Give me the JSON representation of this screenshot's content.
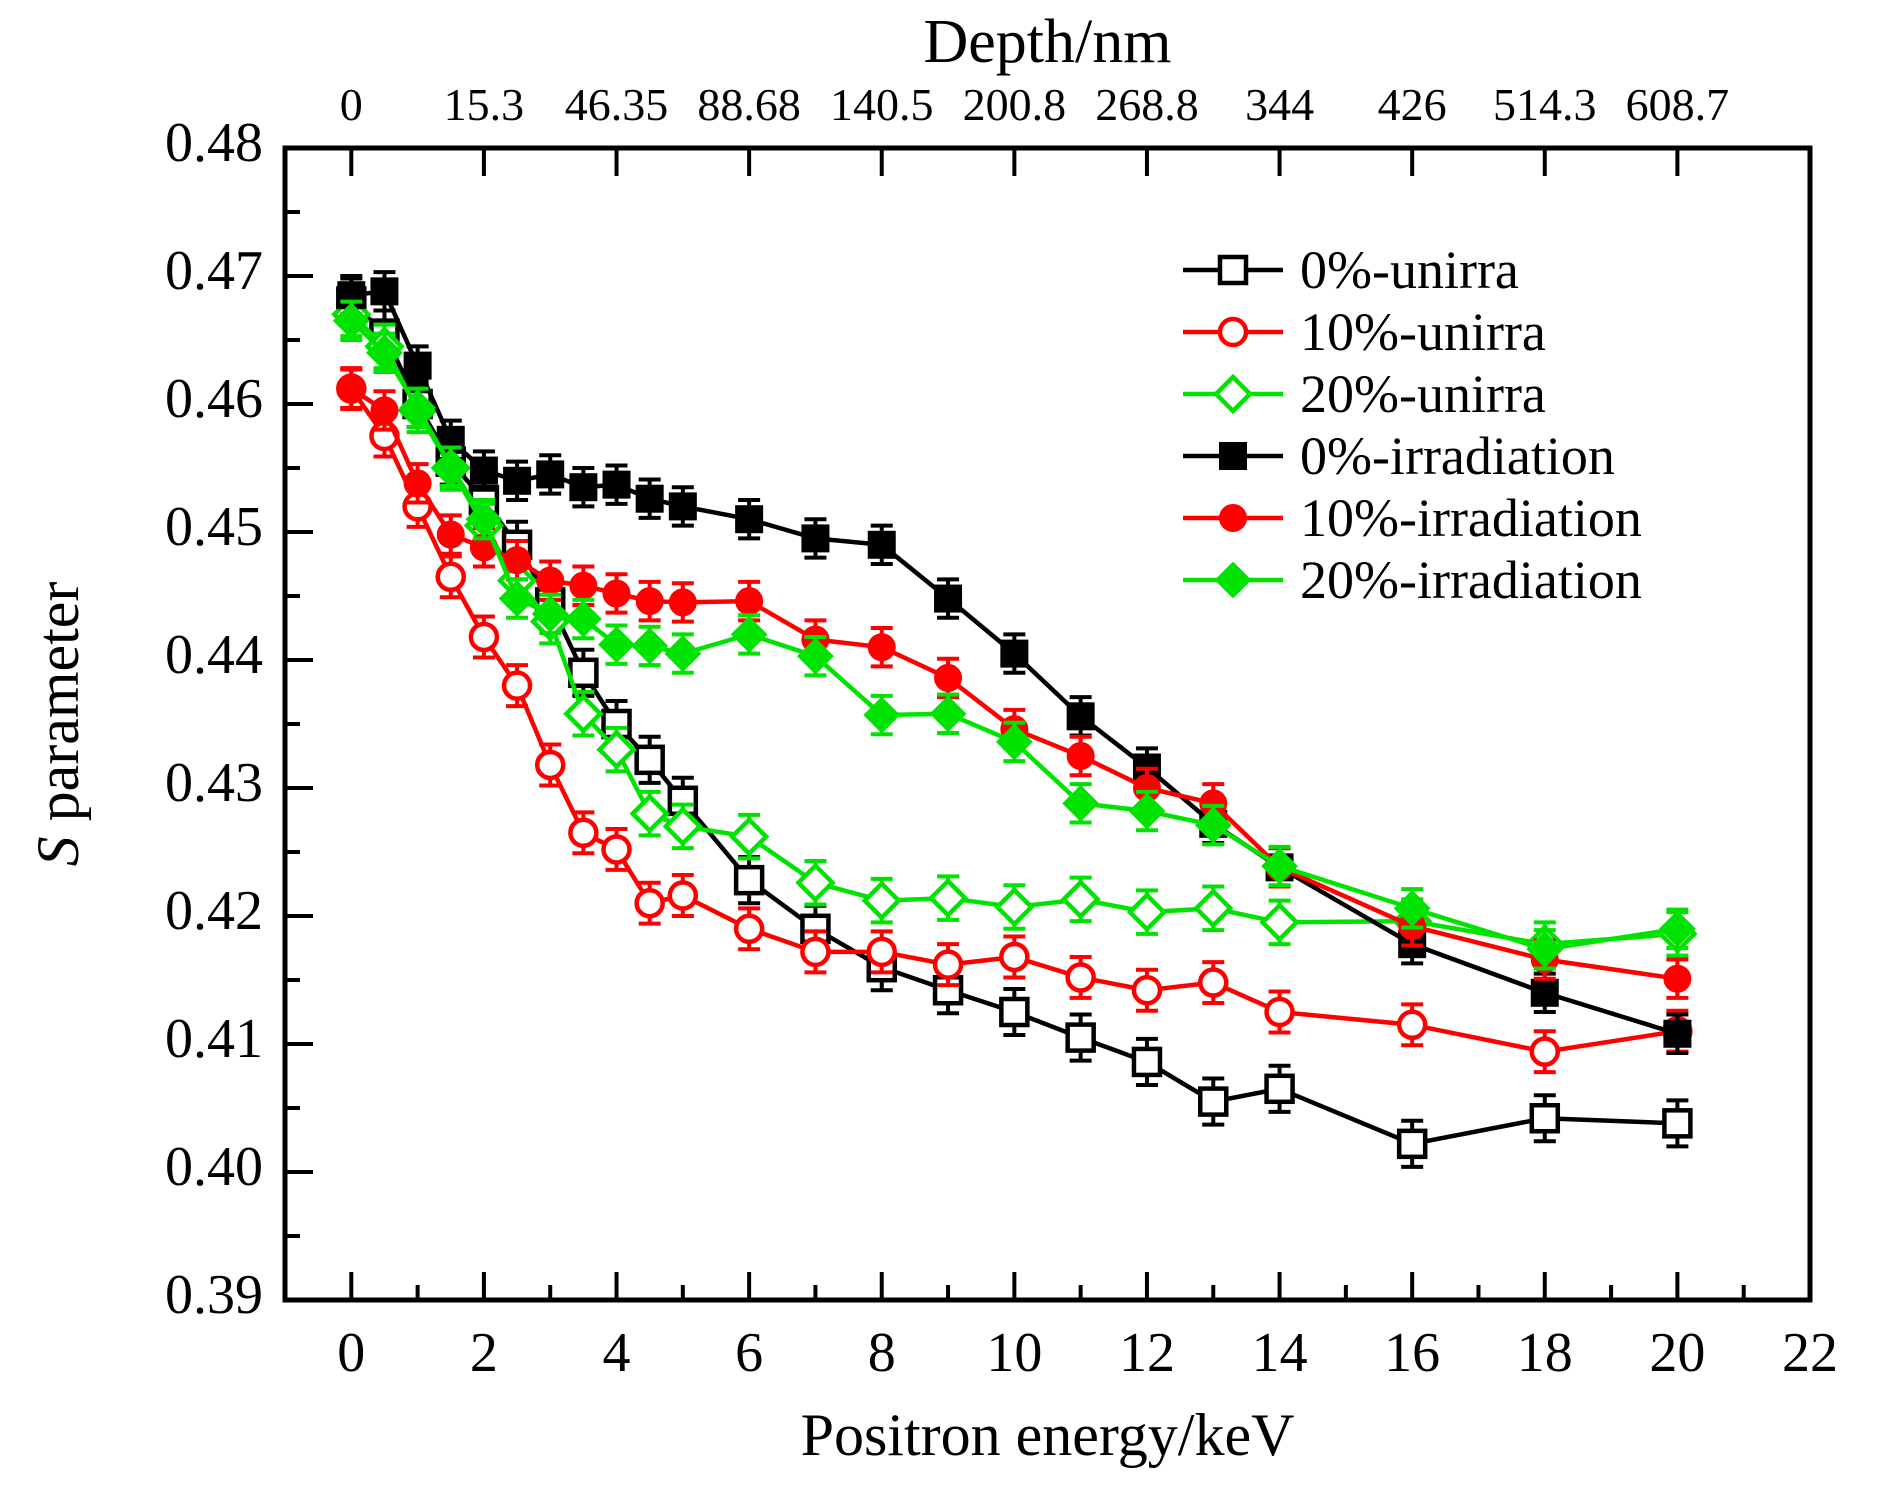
{
  "chart_data": {
    "type": "line",
    "top_axis": {
      "title": "Depth/nm",
      "tick_positions": [
        0,
        2,
        4,
        6,
        8,
        10,
        12,
        14,
        16,
        18,
        20
      ],
      "tick_labels": [
        "0",
        "15.3",
        "46.35",
        "88.68",
        "140.5",
        "200.8",
        "268.8",
        "344",
        "426",
        "514.3",
        "608.7"
      ]
    },
    "x_axis": {
      "label": "Positron energy/keV",
      "min": -1.0,
      "max": 22.0,
      "major_ticks": [
        0,
        2,
        4,
        6,
        8,
        10,
        12,
        14,
        16,
        18,
        20,
        22
      ],
      "tick_labels": [
        "0",
        "2",
        "4",
        "6",
        "8",
        "10",
        "12",
        "14",
        "16",
        "18",
        "20",
        "22"
      ],
      "minor_ticks": [
        1,
        3,
        5,
        7,
        9,
        11,
        13,
        15,
        17,
        19,
        21
      ]
    },
    "y_axis": {
      "label_italic": "S",
      "label_rest": " parameter",
      "min": 0.39,
      "max": 0.48,
      "major_ticks": [
        0.39,
        0.4,
        0.41,
        0.42,
        0.43,
        0.44,
        0.45,
        0.46,
        0.47,
        0.48
      ],
      "tick_labels": [
        "0.39",
        "0.40",
        "0.41",
        "0.42",
        "0.43",
        "0.44",
        "0.45",
        "0.46",
        "0.47",
        "0.48"
      ],
      "minor_step": 0.005
    },
    "x": [
      0,
      0.5,
      1,
      1.5,
      2,
      2.5,
      3,
      3.5,
      4,
      4.5,
      5,
      6,
      7,
      8,
      9,
      10,
      11,
      12,
      13,
      14,
      16,
      18,
      20
    ],
    "series": [
      {
        "name": "0%-unirra",
        "color": "#000000",
        "marker": "square",
        "fill": "open",
        "error": 0.0018,
        "values": [
          0.468,
          0.4655,
          0.46,
          0.4555,
          0.4525,
          0.449,
          0.4445,
          0.439,
          0.435,
          0.4322,
          0.429,
          0.4228,
          0.419,
          0.416,
          0.4142,
          0.4125,
          0.4105,
          0.4086,
          0.4055,
          0.4065,
          0.4022,
          0.4042,
          0.4038
        ]
      },
      {
        "name": "10%-unirra",
        "color": "#ff0000",
        "marker": "circle",
        "fill": "open",
        "error": 0.0016,
        "values": [
          0.4612,
          0.4575,
          0.452,
          0.4465,
          0.4418,
          0.438,
          0.4318,
          0.4265,
          0.4252,
          0.421,
          0.4216,
          0.419,
          0.4172,
          0.4172,
          0.4162,
          0.4168,
          0.4152,
          0.4142,
          0.4148,
          0.4125,
          0.4115,
          0.4094,
          0.411
        ]
      },
      {
        "name": "20%-unirra",
        "color": "#00e300",
        "marker": "diamond",
        "fill": "open",
        "error": 0.0017,
        "values": [
          0.467,
          0.4645,
          0.4595,
          0.455,
          0.4505,
          0.4462,
          0.443,
          0.4358,
          0.433,
          0.428,
          0.427,
          0.4262,
          0.4226,
          0.4212,
          0.4214,
          0.4207,
          0.4213,
          0.4203,
          0.4206,
          0.4195,
          0.4196,
          0.4178,
          0.4186
        ]
      },
      {
        "name": "0%-irradiation",
        "color": "#000000",
        "marker": "square",
        "fill": "solid",
        "error": 0.0015,
        "values": [
          0.4685,
          0.4688,
          0.463,
          0.4572,
          0.4548,
          0.454,
          0.4545,
          0.4535,
          0.4537,
          0.4526,
          0.452,
          0.451,
          0.4495,
          0.449,
          0.4448,
          0.4405,
          0.4356,
          0.4316,
          0.4272,
          0.4238,
          0.4178,
          0.414,
          0.4108
        ]
      },
      {
        "name": "10%-irradiation",
        "color": "#ff0000",
        "marker": "circle",
        "fill": "solid",
        "error": 0.0015,
        "values": [
          0.4612,
          0.4595,
          0.4538,
          0.4498,
          0.4488,
          0.4478,
          0.4462,
          0.4458,
          0.4452,
          0.4446,
          0.4445,
          0.4446,
          0.4416,
          0.441,
          0.4386,
          0.4346,
          0.4325,
          0.43,
          0.4288,
          0.4238,
          0.4192,
          0.4166,
          0.4151
        ]
      },
      {
        "name": "20%-irradiation",
        "color": "#00e300",
        "marker": "diamond",
        "fill": "solid",
        "error": 0.0015,
        "values": [
          0.4665,
          0.464,
          0.4597,
          0.4551,
          0.451,
          0.4448,
          0.4436,
          0.4432,
          0.4412,
          0.4411,
          0.4405,
          0.442,
          0.4403,
          0.4357,
          0.4358,
          0.4336,
          0.4288,
          0.4282,
          0.4271,
          0.4239,
          0.4206,
          0.4174,
          0.419
        ]
      }
    ],
    "legend": {
      "position": "top-right"
    }
  }
}
